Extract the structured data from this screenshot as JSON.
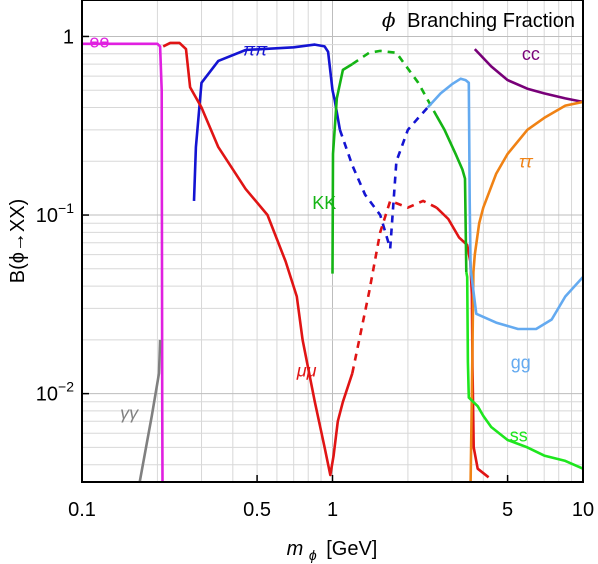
{
  "chart_data": {
    "type": "line",
    "title": "Branching Fraction",
    "title_symbol": "ϕ",
    "xlabel_symbol": "m",
    "xlabel_sub": "ϕ",
    "xlabel_unit": "[GeV]",
    "ylabel": "B(ϕ→XX)",
    "x_scale": "log",
    "y_scale": "log",
    "xlim": [
      0.1,
      10
    ],
    "ylim": [
      0.0032,
      1.6
    ],
    "grid": true,
    "x_ticks": [
      {
        "value": 0.1,
        "label": "0.1"
      },
      {
        "value": 0.5,
        "label": "0.5"
      },
      {
        "value": 1,
        "label": "1"
      },
      {
        "value": 5,
        "label": "5"
      },
      {
        "value": 10,
        "label": "10"
      }
    ],
    "y_ticks": [
      {
        "value": 1,
        "base": "1",
        "exp": ""
      },
      {
        "value": 0.1,
        "base": "10",
        "exp": "−1"
      },
      {
        "value": 0.01,
        "base": "10",
        "exp": "−2"
      }
    ],
    "series": [
      {
        "name": "ee",
        "color": "#e020e0",
        "label_at": [
          0.107,
          0.87
        ],
        "segments": [
          {
            "dash": false,
            "points": [
              [
                0.1,
                0.91
              ],
              [
                0.2,
                0.91
              ],
              [
                0.205,
                0.88
              ],
              [
                0.208,
                0.5
              ],
              [
                0.209,
                0.01
              ],
              [
                0.2095,
                0.0032
              ]
            ]
          }
        ]
      },
      {
        "name": "γγ",
        "color": "#808080",
        "italic": true,
        "label_at": [
          0.142,
          0.0072
        ],
        "segments": [
          {
            "dash": false,
            "points": [
              [
                0.17,
                0.0032
              ],
              [
                0.19,
                0.0075
              ],
              [
                0.203,
                0.013
              ],
              [
                0.205,
                0.02
              ]
            ]
          }
        ]
      },
      {
        "name": "ππ",
        "color": "#1414d2",
        "italic": true,
        "label_at": [
          0.44,
          0.78
        ],
        "segments": [
          {
            "dash": false,
            "points": [
              [
                0.28,
                0.12
              ],
              [
                0.285,
                0.24
              ],
              [
                0.3,
                0.55
              ],
              [
                0.35,
                0.73
              ],
              [
                0.45,
                0.84
              ],
              [
                0.7,
                0.87
              ],
              [
                0.85,
                0.9
              ],
              [
                0.93,
                0.88
              ],
              [
                0.96,
                0.82
              ],
              [
                1.0,
                0.5
              ],
              [
                1.02,
                0.44
              ],
              [
                1.07,
                0.3
              ]
            ]
          },
          {
            "dash": true,
            "points": [
              [
                1.07,
                0.3
              ],
              [
                1.2,
                0.19
              ],
              [
                1.35,
                0.13
              ],
              [
                1.55,
                0.1
              ],
              [
                1.7,
                0.065
              ],
              [
                1.8,
                0.2
              ],
              [
                2.0,
                0.3
              ],
              [
                2.2,
                0.35
              ],
              [
                2.4,
                0.4
              ]
            ]
          }
        ]
      },
      {
        "name": "μμ",
        "color": "#e01414",
        "italic": true,
        "label_at": [
          0.72,
          0.0125
        ],
        "segments": [
          {
            "dash": false,
            "points": [
              [
                0.211,
                0.88
              ],
              [
                0.225,
                0.92
              ],
              [
                0.245,
                0.92
              ],
              [
                0.26,
                0.85
              ],
              [
                0.27,
                0.52
              ],
              [
                0.3,
                0.4
              ],
              [
                0.35,
                0.24
              ],
              [
                0.45,
                0.14
              ],
              [
                0.55,
                0.1
              ],
              [
                0.65,
                0.055
              ],
              [
                0.72,
                0.035
              ],
              [
                0.76,
                0.02
              ],
              [
                0.85,
                0.009
              ],
              [
                0.93,
                0.005
              ],
              [
                0.98,
                0.0035
              ],
              [
                1.01,
                0.0045
              ],
              [
                1.05,
                0.007
              ],
              [
                1.1,
                0.009
              ],
              [
                1.2,
                0.013
              ]
            ]
          },
          {
            "dash": true,
            "points": [
              [
                1.2,
                0.013
              ],
              [
                1.4,
                0.037
              ],
              [
                1.55,
                0.08
              ],
              [
                1.7,
                0.12
              ],
              [
                2.0,
                0.11
              ],
              [
                2.3,
                0.12
              ],
              [
                2.6,
                0.11
              ]
            ]
          },
          {
            "dash": false,
            "points": [
              [
                2.6,
                0.11
              ],
              [
                2.9,
                0.095
              ],
              [
                3.2,
                0.075
              ],
              [
                3.45,
                0.068
              ],
              [
                3.55,
                0.055
              ],
              [
                3.6,
                0.036
              ],
              [
                3.62,
                0.014
              ],
              [
                3.66,
                0.005
              ],
              [
                3.8,
                0.0038
              ],
              [
                4.2,
                0.0034
              ]
            ]
          }
        ]
      },
      {
        "name": "KK",
        "color": "#14b414",
        "label_at": [
          0.83,
          0.108
        ],
        "segments": [
          {
            "dash": false,
            "points": [
              [
                1.0,
                0.047
              ],
              [
                1.005,
                0.22
              ],
              [
                1.04,
                0.45
              ],
              [
                1.1,
                0.65
              ],
              [
                1.2,
                0.7
              ]
            ]
          },
          {
            "dash": true,
            "points": [
              [
                1.2,
                0.7
              ],
              [
                1.4,
                0.81
              ],
              [
                1.55,
                0.83
              ],
              [
                1.8,
                0.81
              ],
              [
                2.2,
                0.55
              ],
              [
                2.6,
                0.36
              ]
            ]
          },
          {
            "dash": false,
            "points": [
              [
                2.6,
                0.36
              ],
              [
                2.8,
                0.3
              ],
              [
                3.1,
                0.22
              ],
              [
                3.3,
                0.18
              ],
              [
                3.38,
                0.16
              ],
              [
                3.42,
                0.048
              ]
            ]
          }
        ]
      },
      {
        "name": "cc",
        "color": "#780078",
        "label_at": [
          5.7,
          0.74
        ],
        "segments": [
          {
            "dash": false,
            "points": [
              [
                3.7,
                0.85
              ],
              [
                4.3,
                0.68
              ],
              [
                5,
                0.57
              ],
              [
                6,
                0.51
              ],
              [
                7,
                0.48
              ],
              [
                8.5,
                0.45
              ],
              [
                10,
                0.43
              ]
            ]
          }
        ]
      },
      {
        "name": "ττ",
        "color": "#f08214",
        "italic": true,
        "label_at": [
          5.55,
          0.185
        ],
        "segments": [
          {
            "dash": false,
            "points": [
              [
                3.56,
                0.0032
              ],
              [
                3.6,
                0.01
              ],
              [
                3.65,
                0.048
              ],
              [
                3.7,
                0.06
              ],
              [
                3.85,
                0.09
              ],
              [
                4.0,
                0.11
              ],
              [
                4.5,
                0.17
              ],
              [
                5,
                0.22
              ],
              [
                6,
                0.3
              ],
              [
                7,
                0.35
              ],
              [
                8.5,
                0.41
              ],
              [
                10,
                0.43
              ]
            ]
          }
        ]
      },
      {
        "name": "gg",
        "color": "#64aaf0",
        "label_at": [
          5.15,
          0.0138
        ],
        "segments": [
          {
            "dash": false,
            "points": [
              [
                2.4,
                0.4
              ],
              [
                2.7,
                0.48
              ],
              [
                3.0,
                0.54
              ],
              [
                3.25,
                0.58
              ],
              [
                3.4,
                0.57
              ],
              [
                3.5,
                0.55
              ],
              [
                3.53,
                0.12
              ],
              [
                3.56,
                0.05
              ],
              [
                3.75,
                0.028
              ],
              [
                4.5,
                0.025
              ],
              [
                5.5,
                0.023
              ],
              [
                6.5,
                0.023
              ],
              [
                7.5,
                0.026
              ],
              [
                8.5,
                0.035
              ],
              [
                10,
                0.045
              ]
            ]
          }
        ]
      },
      {
        "name": "ss",
        "color": "#1ee61e",
        "label_at": [
          5.1,
          0.0054
        ],
        "segments": [
          {
            "dash": false,
            "points": [
              [
                3.42,
                0.048
              ],
              [
                3.45,
                0.045
              ],
              [
                3.47,
                0.015
              ],
              [
                3.5,
                0.0095
              ],
              [
                3.8,
                0.0085
              ],
              [
                4.0,
                0.0075
              ],
              [
                4.3,
                0.0065
              ],
              [
                5,
                0.0055
              ],
              [
                6,
                0.005
              ],
              [
                7,
                0.0045
              ],
              [
                8.5,
                0.0042
              ],
              [
                10,
                0.0038
              ]
            ]
          }
        ]
      }
    ]
  }
}
